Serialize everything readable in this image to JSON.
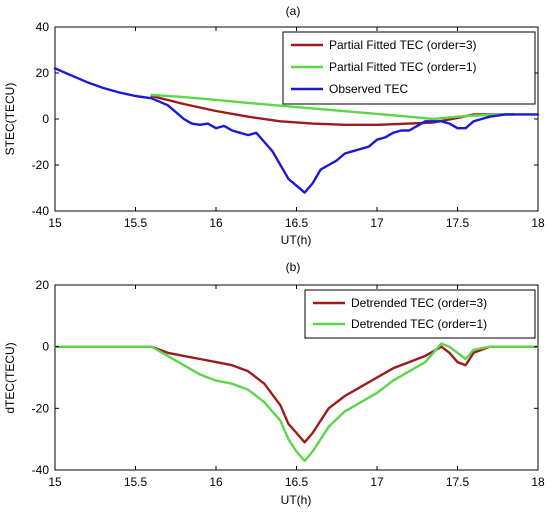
{
  "chart_data": [
    {
      "type": "line",
      "title": "(a)",
      "xlabel": "UT(h)",
      "ylabel": "STEC(TECU)",
      "xlim": [
        15,
        18
      ],
      "ylim": [
        -40,
        40
      ],
      "xticks": [
        15,
        15.5,
        16,
        16.5,
        17,
        17.5,
        18
      ],
      "yticks": [
        -40,
        -20,
        0,
        20,
        40
      ],
      "grid": false,
      "legend_position": "top-right",
      "series": [
        {
          "name": "Partial Fitted TEC (order=3)",
          "color": "#9b1c1c",
          "x": [
            15.6,
            15.8,
            16.0,
            16.2,
            16.4,
            16.6,
            16.8,
            17.0,
            17.2,
            17.35,
            17.5,
            17.6,
            17.8,
            17.85
          ],
          "y": [
            10,
            6.5,
            3.5,
            1,
            -1,
            -2,
            -2.5,
            -2.5,
            -2,
            -1.5,
            0.5,
            2,
            2,
            2
          ]
        },
        {
          "name": "Partial Fitted TEC (order=1)",
          "color": "#5cd64a",
          "x": [
            15.6,
            15.8,
            16.0,
            16.2,
            16.4,
            16.6,
            16.8,
            17.0,
            17.2,
            17.35,
            17.5,
            17.6,
            17.8,
            17.85
          ],
          "y": [
            10.5,
            9.5,
            8.3,
            7,
            5.8,
            4.6,
            3.4,
            2.2,
            1,
            0,
            1,
            1.5,
            2,
            2
          ]
        },
        {
          "name": "Observed TEC",
          "color": "#1a1ad6",
          "x": [
            15.0,
            15.1,
            15.2,
            15.3,
            15.4,
            15.5,
            15.6,
            15.7,
            15.75,
            15.8,
            15.85,
            15.9,
            15.95,
            16.0,
            16.05,
            16.1,
            16.15,
            16.2,
            16.25,
            16.3,
            16.35,
            16.4,
            16.45,
            16.5,
            16.55,
            16.6,
            16.65,
            16.7,
            16.75,
            16.8,
            16.85,
            16.9,
            16.95,
            17.0,
            17.05,
            17.1,
            17.15,
            17.2,
            17.25,
            17.3,
            17.35,
            17.4,
            17.45,
            17.5,
            17.55,
            17.6,
            17.65,
            17.7,
            17.8,
            17.9,
            18.0
          ],
          "y": [
            22,
            19,
            16,
            13.5,
            11.5,
            10,
            9,
            6,
            3,
            0,
            -2,
            -2.5,
            -2,
            -4,
            -3,
            -5,
            -6,
            -7,
            -6,
            -10,
            -14,
            -20,
            -26,
            -29,
            -32,
            -28,
            -22,
            -20,
            -18,
            -15,
            -14,
            -13,
            -12,
            -9,
            -8,
            -6,
            -5,
            -5,
            -3,
            -1,
            -1,
            -1,
            -2,
            -4,
            -4,
            -1,
            0,
            1,
            2,
            2,
            2
          ]
        }
      ]
    },
    {
      "type": "line",
      "title": "(b)",
      "xlabel": "UT(h)",
      "ylabel": "dTEC(TECU)",
      "xlim": [
        15,
        18
      ],
      "ylim": [
        -40,
        20
      ],
      "xticks": [
        15,
        15.5,
        16,
        16.5,
        17,
        17.5,
        18
      ],
      "yticks": [
        -40,
        -20,
        0,
        20
      ],
      "grid": false,
      "legend_position": "top-right",
      "series": [
        {
          "name": "Detrended TEC (order=3)",
          "color": "#9b1c1c",
          "x": [
            15.0,
            15.6,
            15.7,
            15.8,
            15.9,
            16.0,
            16.1,
            16.2,
            16.3,
            16.4,
            16.45,
            16.5,
            16.55,
            16.6,
            16.65,
            16.7,
            16.8,
            16.9,
            17.0,
            17.1,
            17.2,
            17.3,
            17.4,
            17.45,
            17.5,
            17.55,
            17.6,
            17.7,
            17.8,
            17.85,
            18.0
          ],
          "y": [
            0,
            0,
            -2,
            -3,
            -4,
            -5,
            -6,
            -8,
            -12,
            -19,
            -25,
            -28,
            -31,
            -28,
            -24,
            -20,
            -16,
            -13,
            -10,
            -7,
            -5,
            -3,
            0,
            -2,
            -5,
            -6,
            -2,
            0,
            0,
            0,
            0
          ]
        },
        {
          "name": "Detrended TEC (order=1)",
          "color": "#5cd64a",
          "x": [
            15.0,
            15.6,
            15.7,
            15.8,
            15.9,
            16.0,
            16.1,
            16.2,
            16.3,
            16.4,
            16.45,
            16.5,
            16.55,
            16.6,
            16.65,
            16.7,
            16.8,
            16.9,
            17.0,
            17.1,
            17.2,
            17.3,
            17.4,
            17.45,
            17.5,
            17.55,
            17.6,
            17.7,
            17.8,
            17.85,
            18.0
          ],
          "y": [
            0,
            0,
            -3,
            -6,
            -9,
            -11,
            -12,
            -14,
            -18,
            -24,
            -30,
            -34,
            -37,
            -34,
            -30,
            -26,
            -21,
            -18,
            -15,
            -11,
            -8,
            -5,
            1,
            0,
            -2,
            -4,
            -1,
            0,
            0,
            0,
            0
          ]
        }
      ]
    }
  ]
}
